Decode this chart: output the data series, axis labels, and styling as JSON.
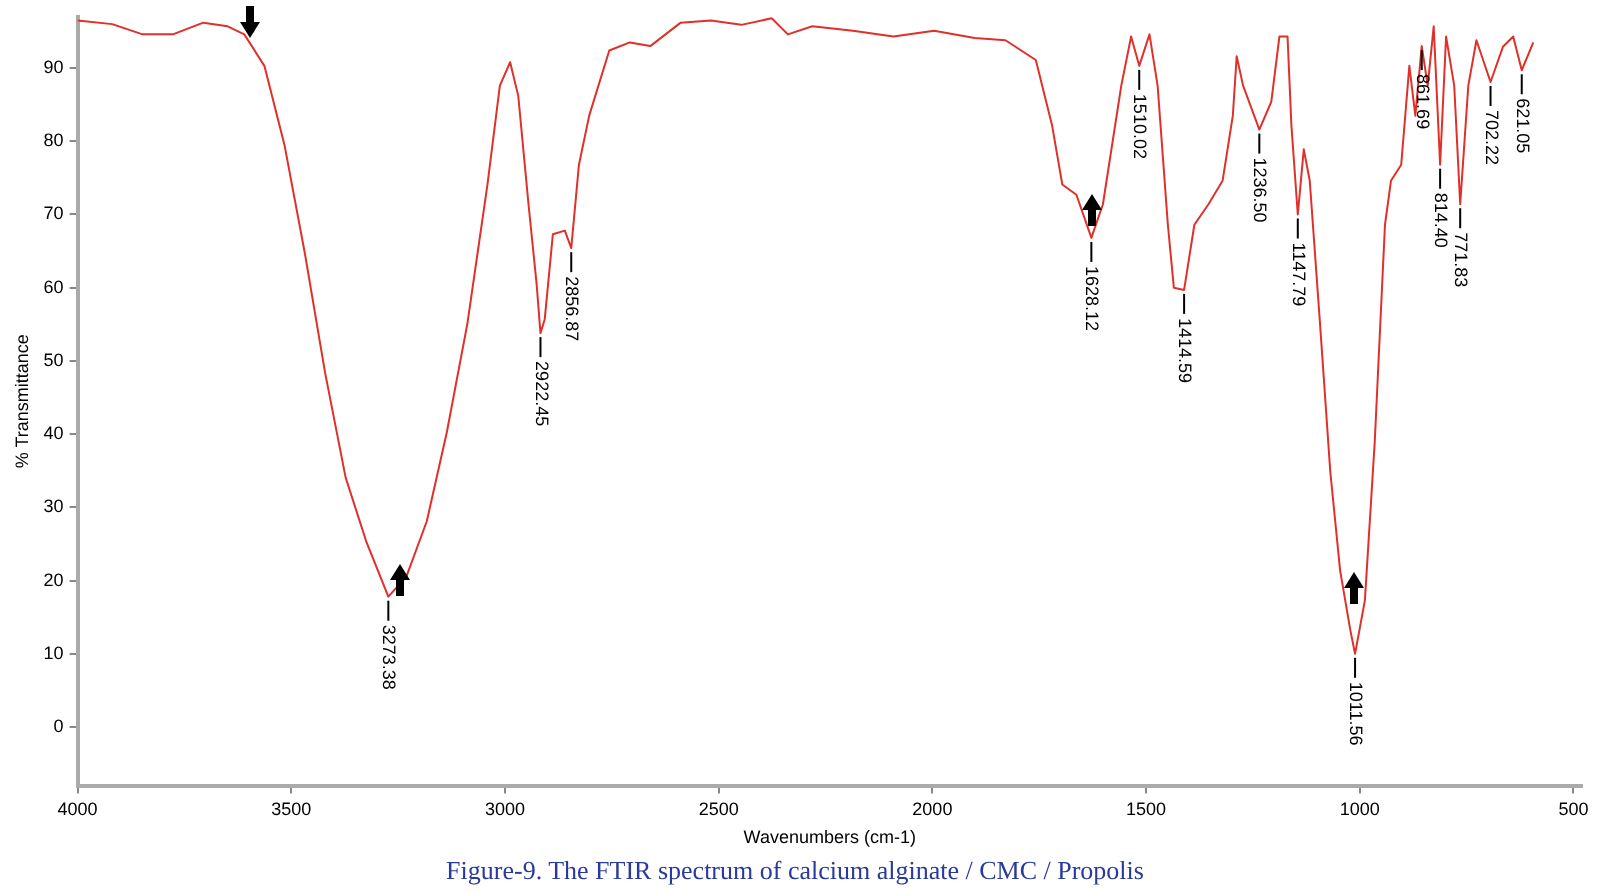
{
  "chart_data": {
    "type": "line",
    "title": "Figure-9. The FTIR spectrum of calcium alginate / CMC / Propolis",
    "xlabel": "Wavenumbers (cm-1)",
    "ylabel": "% Transmittance",
    "x": [
      4000,
      3919,
      3848,
      3777,
      3706,
      3649,
      3610,
      3563,
      3516,
      3468,
      3421,
      3373,
      3325,
      3273,
      3231,
      3183,
      3136,
      3088,
      3041,
      3012,
      2988,
      2969,
      2945,
      2926,
      2917,
      2907,
      2888,
      2860,
      2845,
      2827,
      2803,
      2756,
      2708,
      2660,
      2589,
      2518,
      2447,
      2376,
      2338,
      2281,
      2186,
      2091,
      1996,
      1901,
      1829,
      1758,
      1720,
      1696,
      1663,
      1628,
      1601,
      1558,
      1535,
      1516,
      1492,
      1473,
      1449,
      1435,
      1411,
      1387,
      1354,
      1321,
      1297,
      1288,
      1273,
      1235,
      1207,
      1188,
      1169,
      1160,
      1145,
      1131,
      1117,
      1093,
      1069,
      1046,
      1022,
      1011,
      988,
      965,
      941,
      927,
      903,
      884,
      870,
      855,
      841,
      827,
      812,
      798,
      779,
      765,
      746,
      727,
      694,
      665,
      641,
      621,
      594
    ],
    "series": [
      {
        "color": "#e0302a",
        "values": [
          96.5,
          96,
          94.6,
          94.6,
          96.2,
          95.7,
          94.6,
          90.3,
          79.5,
          64.6,
          48.4,
          34.1,
          25.4,
          17.8,
          20.5,
          28.1,
          40.3,
          55.1,
          74.1,
          87.6,
          90.8,
          86.2,
          71.4,
          60.5,
          53.8,
          55.7,
          67.3,
          67.8,
          65.4,
          76.8,
          83.5,
          92.4,
          93.5,
          93,
          96.2,
          96.5,
          95.9,
          96.8,
          94.6,
          95.7,
          95.1,
          94.3,
          95.1,
          94.1,
          93.8,
          91.1,
          82.2,
          74.1,
          72.7,
          66.8,
          71.4,
          87.6,
          94.3,
          90.3,
          94.6,
          87.6,
          68.6,
          60,
          59.7,
          68.6,
          71.4,
          74.6,
          83.5,
          91.6,
          87.6,
          81.6,
          85.4,
          94.3,
          94.3,
          82.2,
          70,
          78.9,
          74.6,
          55.1,
          34.9,
          21.4,
          13.2,
          10,
          17.3,
          38.9,
          68.6,
          74.6,
          76.8,
          90.3,
          83.5,
          93,
          87.6,
          95.7,
          76.8,
          94.3,
          87.6,
          71.4,
          87.6,
          93.8,
          88.1,
          92.9,
          94.3,
          89.7,
          93.5
        ]
      }
    ],
    "xlim": [
      4000,
      480
    ],
    "xticks": [
      4000,
      3500,
      3000,
      2500,
      2000,
      1500,
      1000,
      500
    ],
    "ylim": [
      -8,
      97
    ],
    "yticks": [
      0,
      10,
      20,
      30,
      40,
      50,
      60,
      70,
      80,
      90
    ],
    "grid": false,
    "legend": false,
    "marker": "none",
    "line_style": "solid",
    "annotations": [
      {
        "text": "3273.38",
        "x": 3273,
        "y": 17.8
      },
      {
        "text": "2922.45",
        "x": 2917,
        "y": 53.8
      },
      {
        "text": "2856.87",
        "x": 2845,
        "y": 65.4
      },
      {
        "text": "1628.12",
        "x": 1628,
        "y": 66.8
      },
      {
        "text": "1510.02",
        "x": 1516,
        "y": 90.3
      },
      {
        "text": "1414.59",
        "x": 1411,
        "y": 59.7
      },
      {
        "text": "1236.50",
        "x": 1235,
        "y": 81.6
      },
      {
        "text": "1147.79",
        "x": 1145,
        "y": 70
      },
      {
        "text": "1011.56",
        "x": 1011,
        "y": 10
      },
      {
        "text": "861.69",
        "x": 855,
        "y": 93
      },
      {
        "text": "814.40",
        "x": 812,
        "y": 76.8
      },
      {
        "text": "771.83",
        "x": 765,
        "y": 71.4
      },
      {
        "text": "702.22",
        "x": 694,
        "y": 88.1
      },
      {
        "text": "621.05",
        "x": 621,
        "y": 89.7
      }
    ]
  }
}
